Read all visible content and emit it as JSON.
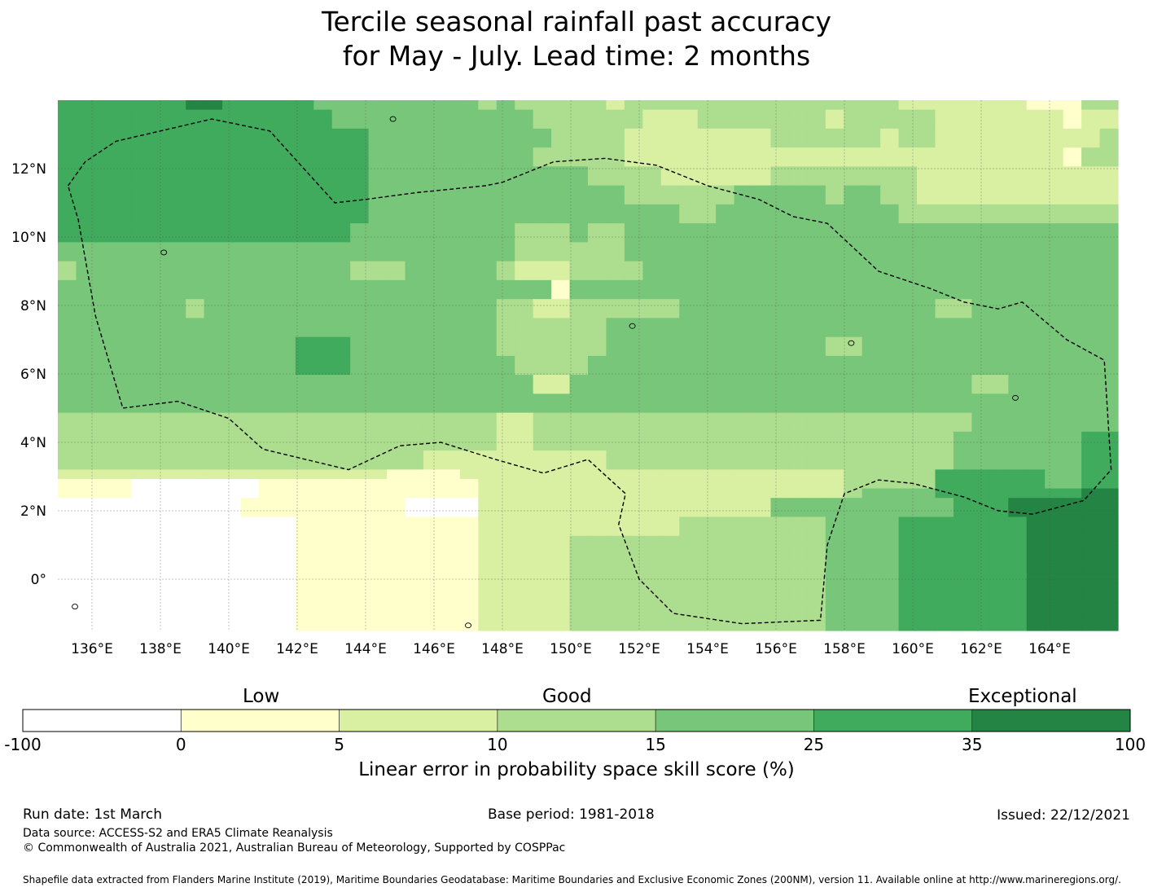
{
  "title": {
    "line1": "Tercile seasonal rainfall past accuracy",
    "line2": "for May - July. Lead time: 2 months"
  },
  "map": {
    "type": "choropleth-grid",
    "lon_range": [
      135.0,
      166.0
    ],
    "lat_range": [
      -1.5,
      14.0
    ],
    "cell_size_deg": 0.833,
    "lon_ticks": [
      {
        "v": 136,
        "label": "136°E"
      },
      {
        "v": 138,
        "label": "138°E"
      },
      {
        "v": 140,
        "label": "140°E"
      },
      {
        "v": 142,
        "label": "142°E"
      },
      {
        "v": 144,
        "label": "144°E"
      },
      {
        "v": 146,
        "label": "146°E"
      },
      {
        "v": 148,
        "label": "148°E"
      },
      {
        "v": 150,
        "label": "150°E"
      },
      {
        "v": 152,
        "label": "152°E"
      },
      {
        "v": 154,
        "label": "154°E"
      },
      {
        "v": 156,
        "label": "156°E"
      },
      {
        "v": 158,
        "label": "158°E"
      },
      {
        "v": 160,
        "label": "160°E"
      },
      {
        "v": 162,
        "label": "162°E"
      },
      {
        "v": 164,
        "label": "164°E"
      }
    ],
    "lat_ticks": [
      {
        "v": 12,
        "label": "12°N"
      },
      {
        "v": 10,
        "label": "10°N"
      },
      {
        "v": 8,
        "label": "8°N"
      },
      {
        "v": 6,
        "label": "6°N"
      },
      {
        "v": 4,
        "label": "4°N"
      },
      {
        "v": 2,
        "label": "2°N"
      },
      {
        "v": 0,
        "label": "0°"
      }
    ],
    "class_grid": [
      "5555555665555544444444434333332333333333333333222222211133",
      "5555555555555554444444444433333322233333332333332222222122",
      "5555555555555554444444444433333322233333332333332222222122",
      "5555555555555555544444444443333222222223333332332222222223",
      "5555555555555555544444444443333222222223333332332222222223",
      "5555555555555555544444444433333222222222222222222222222133",
      "5555555555555555544444444433333222222222222222222222222133",
      "5555555555555555544444444444433332222223333333322222222222",
      "5555555555555555544444444444433332222223333333322222222222",
      "5555555555555555544444444444444333333444443443322222222222",
      "5555555555555555544444444444444333333444443443322222222222",
      "5555555555555555544444444444444444334444444444333333333333",
      "5555555555555555544444444444444444334444444444333333333333",
      "5555555555555555444444444333433444444444444444444444444444",
      "5555555555555555444444444333433444444444444444444444444444",
      "4444444444444444444444444333333444444444444444444444444444",
      "4444444444444444444444444333333444444444444444444444444444",
      "3444444444444444333444443222333344444444444444444444444444",
      "3444444444444444333444443222333344444444444444444444444444",
      "4444444444444444444444444441444444444444444444444444444444",
      "4444444444444444444444444441444444444444444444444444444444",
      "4444444344444444444444443322333333444444444444443344444444",
      "4444444344444444444444443322333333444444444444443344444444",
      "4444444444444444444444443333334444444444444444444444444444",
      "4444444444444444444444443333334444444444444444444444444444",
      "4444444444444555444444443333334444444444443344444444444444",
      "4444444444444555444444443333334444444444443344444444444444",
      "4444444444444555444444444333344444444444444444444444444444",
      "4444444444444555444444444333344444444444444444444444444444",
      "4444444444444444444444444422444444444444444444444433444444",
      "4444444444444444444444444422444444444444444444444433444444",
      "4444444444444444444444444444444444444444444444444444444444",
      "4444444444444444444444444444444444444444444444444444444444",
      "3333333333333333333333332233333333333333333333333344444444",
      "3333333333333333333333332233333333333333333333333344444444",
      "3333333333333333333333332233333333333333333333333444444455",
      "3333333333333333333333332233333333333333333333333444444455",
      "3333333333333333333322222222223333333333333333333444444455",
      "3333333333333333333322222222223333333333333333333444444455",
      "2222222222222222221111222222222222222222222333335555554455",
      "1111000000011111111111122222222222222222222333335555554455",
      "1111000000011111111111122222222222222222222344445555555566",
      "0000000000111111111000022222222222222224444444444555666666",
      "0000000000111111111000022222222222222224444444444555666666",
      "0000000000000111111111122222222222333333334444555555566666",
      "0000000000000111111111122222222222333333334444555555566666",
      "0000000000000111111111122222333333333333334444555555566666",
      "0000000000000111111111122222333333333333334444555555566666",
      "0000000000000111111111122222333333333333334444555555566666",
      "0000000000000111111111122222333333333333334444555555566666",
      "0000000000000111111111122222333333333333334444555555566666",
      "0000000000000111111111122222333333333333334444555555566666",
      "0000000000000111111111122222333333333333334444555555566666",
      "0000000000000111111111122222333333333333334444555555566666",
      "0000000000000111111111122222333333333333334444555555566666",
      "0000000000000111111111122222333333333333334444555555566666"
    ],
    "eez_boundary": [
      [
        135.3,
        11.5
      ],
      [
        135.8,
        12.2
      ],
      [
        136.7,
        12.8
      ],
      [
        138.0,
        13.1
      ],
      [
        139.5,
        13.45
      ],
      [
        141.2,
        13.1
      ],
      [
        143.1,
        11.0
      ],
      [
        144.0,
        11.1
      ],
      [
        145.5,
        11.3
      ],
      [
        147.5,
        11.5
      ],
      [
        148.0,
        11.6
      ],
      [
        149.5,
        12.2
      ],
      [
        151.0,
        12.3
      ],
      [
        152.5,
        12.1
      ],
      [
        154.0,
        11.5
      ],
      [
        155.5,
        11.1
      ],
      [
        156.5,
        10.6
      ],
      [
        157.5,
        10.4
      ],
      [
        159.0,
        9.0
      ],
      [
        160.5,
        8.5
      ],
      [
        161.5,
        8.1
      ],
      [
        162.5,
        7.9
      ],
      [
        163.2,
        8.1
      ],
      [
        164.5,
        7.0
      ],
      [
        165.6,
        6.4
      ],
      [
        165.8,
        3.2
      ],
      [
        165.0,
        2.3
      ],
      [
        163.5,
        1.9
      ],
      [
        162.5,
        2.0
      ],
      [
        161.5,
        2.4
      ],
      [
        160.0,
        2.8
      ],
      [
        159.0,
        2.9
      ],
      [
        158.0,
        2.5
      ],
      [
        157.5,
        1.0
      ],
      [
        157.3,
        -1.2
      ],
      [
        155.0,
        -1.3
      ],
      [
        153.0,
        -1.0
      ],
      [
        152.0,
        0.0
      ],
      [
        151.4,
        1.6
      ],
      [
        151.6,
        2.5
      ],
      [
        150.5,
        3.5
      ],
      [
        149.2,
        3.1
      ],
      [
        147.8,
        3.5
      ],
      [
        146.2,
        4.0
      ],
      [
        145.0,
        3.9
      ],
      [
        143.5,
        3.2
      ],
      [
        141.0,
        3.8
      ],
      [
        140.0,
        4.7
      ],
      [
        138.5,
        5.2
      ],
      [
        136.9,
        5.0
      ],
      [
        136.1,
        7.7
      ],
      [
        135.6,
        10.5
      ],
      [
        135.3,
        11.5
      ]
    ],
    "land_features": [
      {
        "name": "guam",
        "lon": 144.8,
        "lat": 13.45
      },
      {
        "name": "yap",
        "lon": 138.1,
        "lat": 9.55
      },
      {
        "name": "chuuk",
        "lon": 151.8,
        "lat": 7.4
      },
      {
        "name": "pohnpei",
        "lon": 158.2,
        "lat": 6.9
      },
      {
        "name": "kosrae",
        "lon": 163.0,
        "lat": 5.3
      },
      {
        "name": "manus",
        "lon": 147.0,
        "lat": -2.1
      },
      {
        "name": "new-guinea-coast",
        "lon": 135.5,
        "lat": -0.8
      }
    ]
  },
  "colorbar": {
    "classes": [
      {
        "min": "-100",
        "max": "0",
        "color": "#ffffff"
      },
      {
        "min": "0",
        "max": "5",
        "color": "#ffffcc"
      },
      {
        "min": "5",
        "max": "10",
        "color": "#d9f0a3"
      },
      {
        "min": "10",
        "max": "15",
        "color": "#addd8e"
      },
      {
        "min": "15",
        "max": "25",
        "color": "#78c679"
      },
      {
        "min": "25",
        "max": "35",
        "color": "#41ab5d"
      },
      {
        "min": "35",
        "max": "100",
        "color": "#238443"
      }
    ],
    "tick_labels": [
      "-100",
      "0",
      "5",
      "10",
      "15",
      "25",
      "35",
      "100"
    ],
    "categories": [
      "Low",
      "Good",
      "Exceptional"
    ],
    "label": "Linear error in probability space skill score (%)"
  },
  "footer": {
    "run_date": "Run date: 1st March",
    "base_period": "Base period: 1981-2018",
    "issued": "Issued: 22/12/2021",
    "data_source": "Data source: ACCESS-S2 and ERA5 Climate Reanalysis",
    "copyright": "© Commonwealth of Australia 2021, Australian Bureau of Meteorology, Supported by COSPPac",
    "shapefile": "Shapefile data extracted from Flanders Marine Institute (2019), Maritime Boundaries Geodatabase: Maritime Boundaries and Exclusive Economic Zones (200NM), version 11. Available online at http://www.marineregions.org/."
  }
}
